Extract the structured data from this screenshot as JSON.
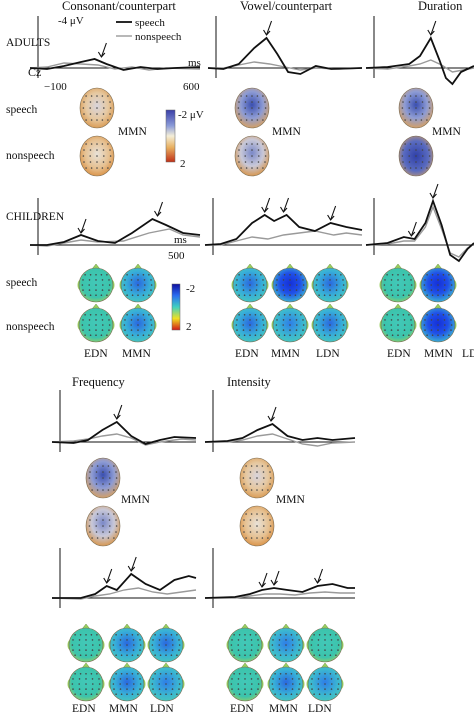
{
  "panels": {
    "consonant": "Consonant/counterpart",
    "vowel": "Vowel/counterpart",
    "duration": "Duration",
    "frequency": "Frequency",
    "intensity": "Intensity"
  },
  "groups": {
    "adults": "ADULTS",
    "children": "CHILDREN"
  },
  "axis": {
    "amp_label": "-4 μV",
    "electrode": "Cz",
    "t_start": "−100",
    "t_end_adults": "600",
    "t_end_children": "500",
    "ms": "ms"
  },
  "legend": {
    "speech": "speech",
    "nonspeech": "nonspeech"
  },
  "rows": {
    "speech": "speech",
    "nonspeech": "nonspeech"
  },
  "components": {
    "mmn": "MMN",
    "edn": "EDN",
    "ldn": "LDN"
  },
  "colorbars": {
    "adults": {
      "top": "-2 μV",
      "bottom": "2"
    },
    "children": {
      "top": "-2",
      "bottom": "2"
    }
  },
  "colors": {
    "speech_trace": "#111111",
    "nonspeech_trace": "#9a9a9a",
    "adult_map_negative": "#3a4fb0",
    "adult_map_positive": "#d88a3a",
    "child_map_background": "#3fc8b8",
    "child_map_negative": "#1530d8"
  }
}
